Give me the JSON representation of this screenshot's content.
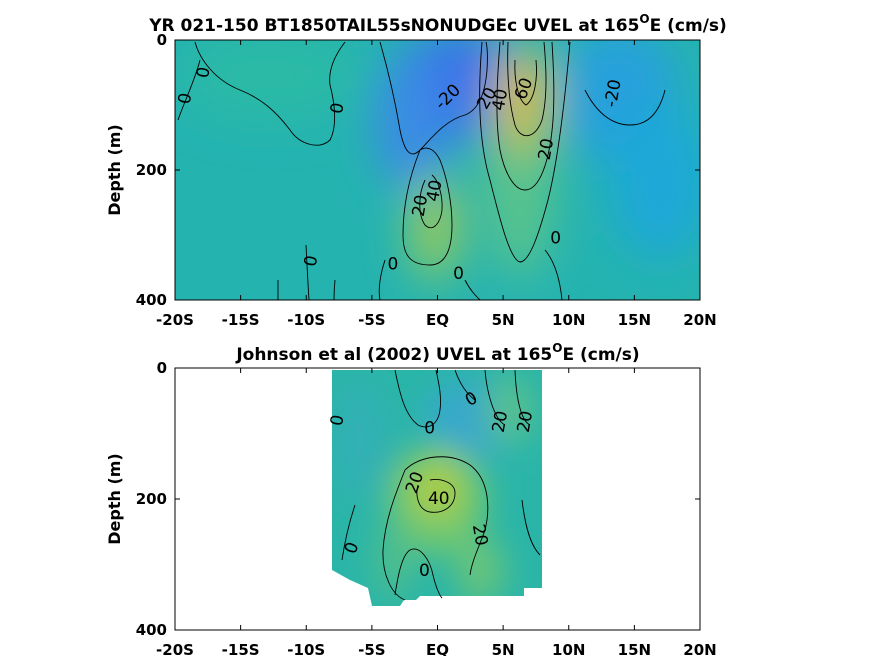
{
  "chart_data": [
    {
      "type": "heatmap",
      "title": "YR 021-150 BT1850TAIL55sNONUDGEc UVEL at 165",
      "title_sup": "O",
      "title_suffix": "E (cm/s)",
      "xlabel": "",
      "ylabel": "Depth (m)",
      "xlim": [
        -20,
        20
      ],
      "ylim": [
        0,
        400
      ],
      "y_reversed": true,
      "x_ticks": [
        -20,
        -15,
        -10,
        -5,
        0,
        5,
        10,
        15,
        20
      ],
      "x_tick_labels": [
        "-20S",
        "-15S",
        "-10S",
        "-5S",
        "EQ",
        "5N",
        "10N",
        "15N",
        "20N"
      ],
      "y_ticks": [
        0,
        200,
        400
      ],
      "y_tick_labels": [
        "0",
        "200",
        "400"
      ],
      "colormap": [
        "#3a6ee8",
        "#1aa8d8",
        "#28b8a8",
        "#6cc878",
        "#d8c030"
      ],
      "color_range": [
        -40,
        80
      ],
      "field": [
        {
          "lat": -20,
          "depth": 150,
          "u": 0
        },
        {
          "lat": -9,
          "depth": 80,
          "u": -5
        },
        {
          "lat": -3,
          "depth": 40,
          "u": -20
        },
        {
          "lat": -0.5,
          "depth": 40,
          "u": -35
        },
        {
          "lat": 0,
          "depth": 220,
          "u": 42
        },
        {
          "lat": 2.5,
          "depth": 100,
          "u": -15
        },
        {
          "lat": 6.5,
          "depth": 80,
          "u": 70
        },
        {
          "lat": 6.5,
          "depth": 250,
          "u": 20
        },
        {
          "lat": 12,
          "depth": 60,
          "u": -30
        },
        {
          "lat": 16,
          "depth": 100,
          "u": -15
        },
        {
          "lat": 18,
          "depth": 300,
          "u": -5
        }
      ],
      "contour_labels": [
        {
          "text": "0",
          "lat": -17.8,
          "depth": 50,
          "angle": -80
        },
        {
          "text": "0",
          "lat": -19.2,
          "depth": 90,
          "angle": -80
        },
        {
          "text": "0",
          "lat": -7.6,
          "depth": 105,
          "angle": -80
        },
        {
          "text": "0",
          "lat": -9.6,
          "depth": 340,
          "angle": -80
        },
        {
          "text": "0",
          "lat": -3.4,
          "depth": 345,
          "angle": 0
        },
        {
          "text": "0",
          "lat": 1.6,
          "depth": 360,
          "angle": 0
        },
        {
          "text": "0",
          "lat": 9.0,
          "depth": 305,
          "angle": 0
        },
        {
          "text": "-20",
          "lat": 0.8,
          "depth": 88,
          "angle": -45
        },
        {
          "text": "20",
          "lat": 3.8,
          "depth": 90,
          "angle": -60
        },
        {
          "text": "40",
          "lat": 4.8,
          "depth": 92,
          "angle": -80
        },
        {
          "text": "60",
          "lat": 6.6,
          "depth": 75,
          "angle": -70
        },
        {
          "text": "20",
          "lat": 8.3,
          "depth": 168,
          "angle": -80
        },
        {
          "text": "40",
          "lat": -0.2,
          "depth": 232,
          "angle": -80
        },
        {
          "text": "20",
          "lat": -1.3,
          "depth": 255,
          "angle": -80
        },
        {
          "text": "-20",
          "lat": 13.4,
          "depth": 82,
          "angle": -80
        }
      ]
    },
    {
      "type": "heatmap",
      "title": "Johnson et al (2002) UVEL at 165",
      "title_sup": "O",
      "title_suffix": "E (cm/s)",
      "xlabel": "",
      "ylabel": "Depth (m)",
      "xlim": [
        -20,
        20
      ],
      "ylim": [
        0,
        400
      ],
      "y_reversed": true,
      "data_lat_range": [
        -8,
        8
      ],
      "x_ticks": [
        -20,
        -15,
        -10,
        -5,
        0,
        5,
        10,
        15,
        20
      ],
      "x_tick_labels": [
        "-20S",
        "-15S",
        "-10S",
        "-5S",
        "EQ",
        "5N",
        "10N",
        "15N",
        "20N"
      ],
      "y_ticks": [
        0,
        200,
        400
      ],
      "y_tick_labels": [
        "0",
        "200",
        "400"
      ],
      "colormap": [
        "#3a6ee8",
        "#1aa8d8",
        "#28b8a8",
        "#6cc878",
        "#d8c030"
      ],
      "color_range": [
        -40,
        80
      ],
      "field": [
        {
          "lat": -6,
          "depth": 100,
          "u": 0
        },
        {
          "lat": -2,
          "depth": 60,
          "u": -10
        },
        {
          "lat": 0,
          "depth": 190,
          "u": 45
        },
        {
          "lat": 3,
          "depth": 120,
          "u": 10
        },
        {
          "lat": 6,
          "depth": 80,
          "u": 25
        },
        {
          "lat": 4,
          "depth": 280,
          "u": 20
        },
        {
          "lat": 7,
          "depth": 250,
          "u": 0
        }
      ],
      "contour_labels": [
        {
          "text": "0",
          "lat": -7.6,
          "depth": 80,
          "angle": -80
        },
        {
          "text": "0",
          "lat": -0.6,
          "depth": 92,
          "angle": 0
        },
        {
          "text": "0",
          "lat": 2.6,
          "depth": 48,
          "angle": -30
        },
        {
          "text": "20",
          "lat": 4.8,
          "depth": 82,
          "angle": -80
        },
        {
          "text": "20",
          "lat": 6.7,
          "depth": 82,
          "angle": -80
        },
        {
          "text": "20",
          "lat": -1.7,
          "depth": 175,
          "angle": -70
        },
        {
          "text": "40",
          "lat": 0.1,
          "depth": 200,
          "angle": 0
        },
        {
          "text": "20",
          "lat": 3.2,
          "depth": 255,
          "angle": 80
        },
        {
          "text": "0",
          "lat": -6.5,
          "depth": 275,
          "angle": -70
        },
        {
          "text": "0",
          "lat": -1.0,
          "depth": 310,
          "angle": 0
        }
      ]
    }
  ]
}
